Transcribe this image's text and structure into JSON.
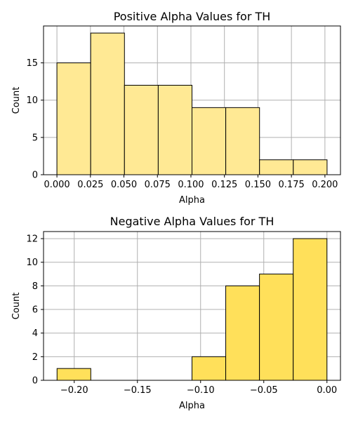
{
  "chart_data": [
    {
      "type": "bar",
      "title": "Positive Alpha Values for TH",
      "xlabel": "Alpha",
      "ylabel": "Count",
      "bin_edges": [
        0.0,
        0.0252,
        0.0504,
        0.0756,
        0.1008,
        0.126,
        0.1512,
        0.1764,
        0.2016
      ],
      "values": [
        15,
        19,
        12,
        12,
        9,
        9,
        2,
        2
      ],
      "xlim": [
        -0.01,
        0.2116
      ],
      "ylim": [
        0,
        19.95
      ],
      "xticks": [
        0.0,
        0.025,
        0.05,
        0.075,
        0.1,
        0.125,
        0.15,
        0.175,
        0.2
      ],
      "xtick_labels": [
        "0.000",
        "0.025",
        "0.050",
        "0.075",
        "0.100",
        "0.125",
        "0.150",
        "0.175",
        "0.200"
      ],
      "yticks": [
        0,
        5,
        10,
        15
      ],
      "ytick_labels": [
        "0",
        "5",
        "10",
        "15"
      ],
      "grid": true,
      "bar_color": "#ffe994",
      "edge_color": "#000000"
    },
    {
      "type": "bar",
      "title": "Negative Alpha Values for TH",
      "xlabel": "Alpha",
      "ylabel": "Count",
      "bin_edges": [
        -0.2136,
        -0.1869,
        -0.1602,
        -0.1335,
        -0.1068,
        -0.0801,
        -0.0534,
        -0.0267,
        0.0
      ],
      "values": [
        1,
        0,
        0,
        0,
        2,
        8,
        9,
        12
      ],
      "xlim": [
        -0.2243,
        0.0107
      ],
      "ylim": [
        0,
        12.6
      ],
      "xticks": [
        -0.2,
        -0.15,
        -0.1,
        -0.05,
        0.0
      ],
      "xtick_labels": [
        "−0.20",
        "−0.15",
        "−0.10",
        "−0.05",
        "0.00"
      ],
      "yticks": [
        0,
        2,
        4,
        6,
        8,
        10,
        12
      ],
      "ytick_labels": [
        "0",
        "2",
        "4",
        "6",
        "8",
        "10",
        "12"
      ],
      "grid": true,
      "bar_color": "#ffe05a",
      "edge_color": "#000000"
    }
  ]
}
